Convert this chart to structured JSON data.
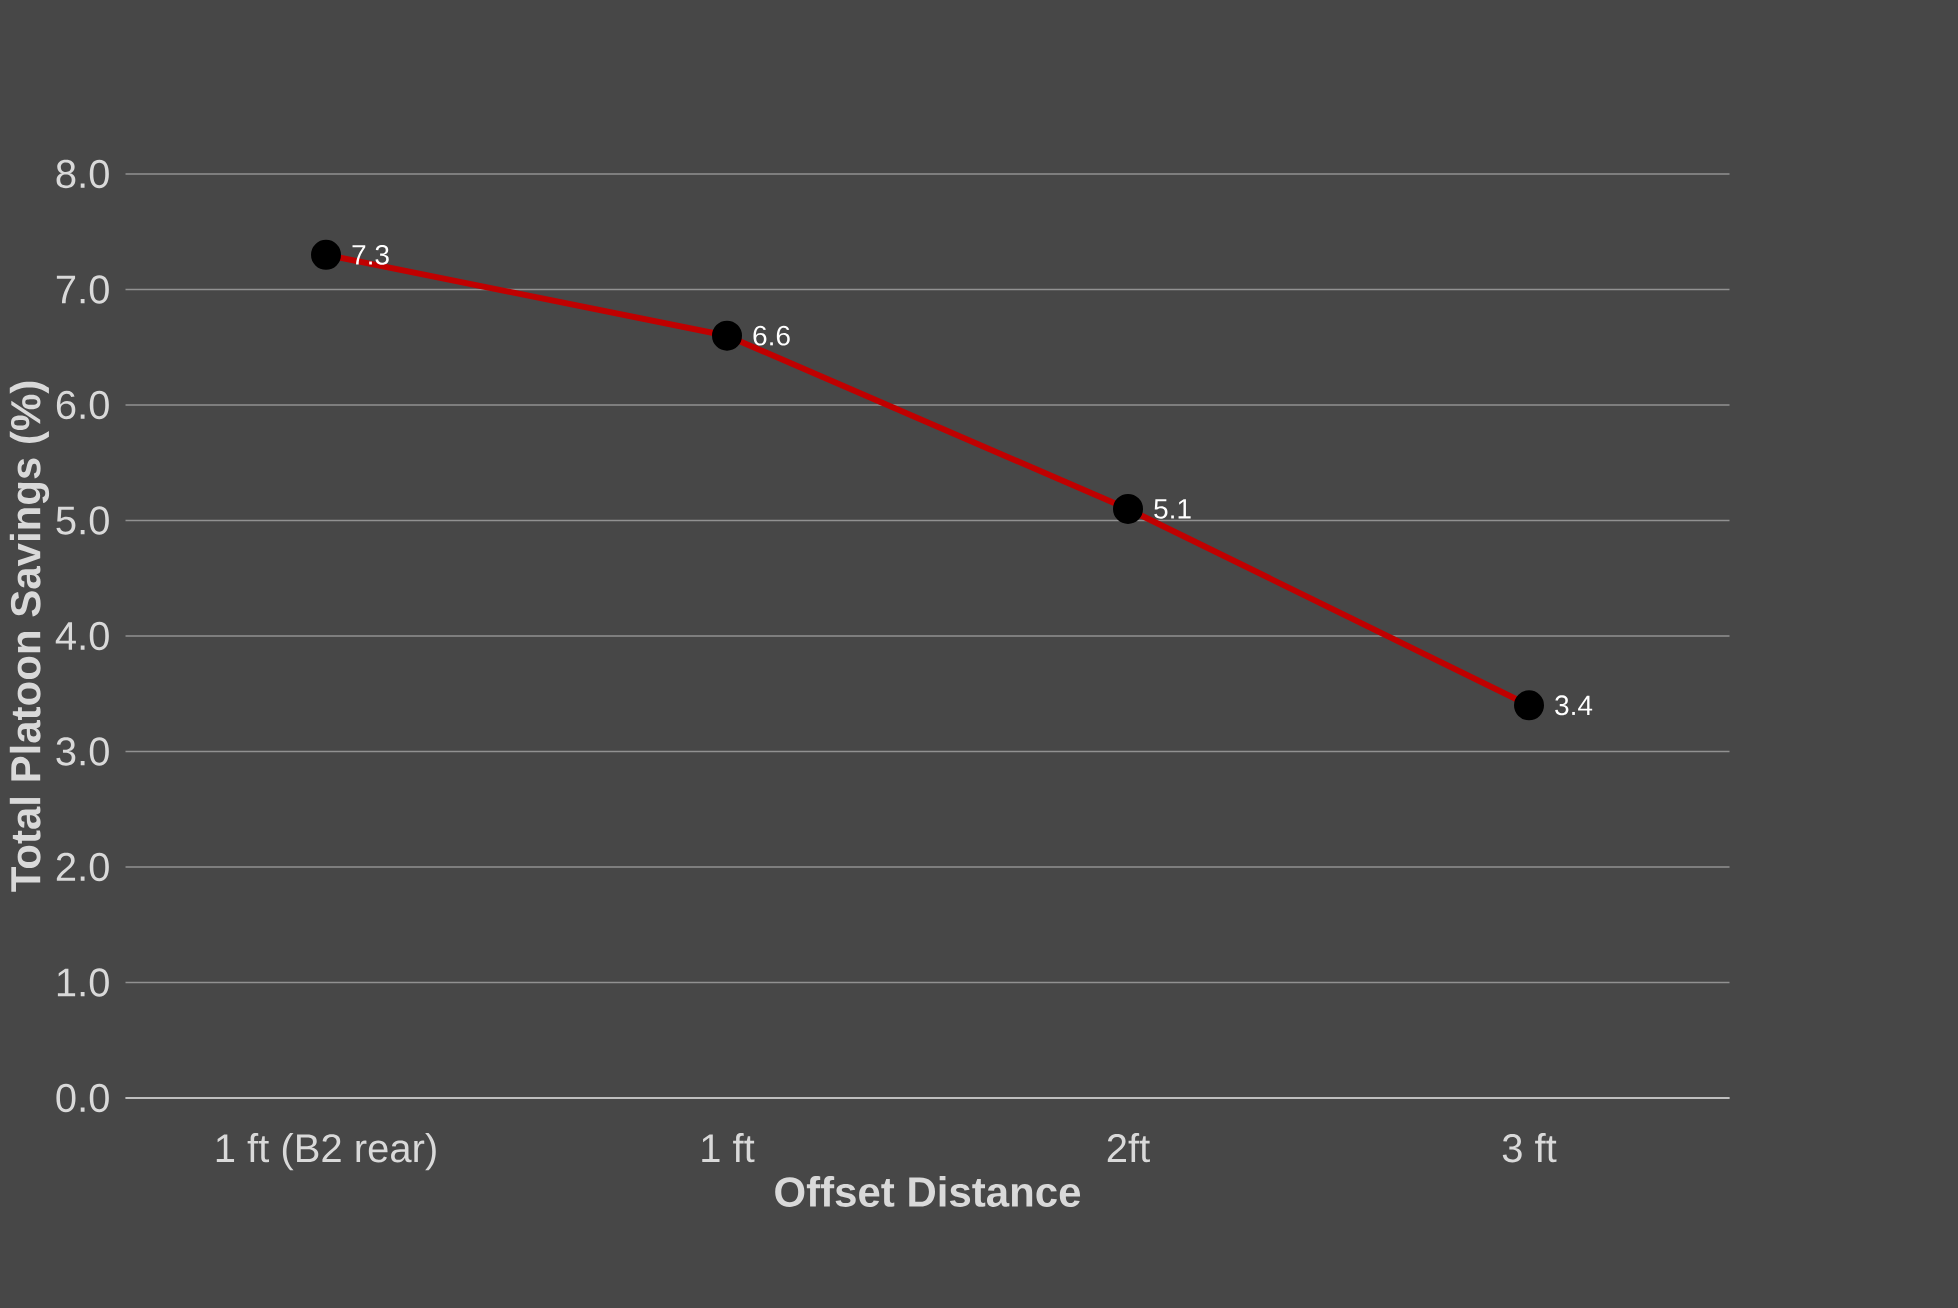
{
  "chart_data": {
    "type": "line",
    "xlabel": "Offset Distance",
    "ylabel": "Total Platoon Savings (%)",
    "categories": [
      "1 ft (B2 rear)",
      "1 ft",
      "2ft",
      "3 ft"
    ],
    "series": [
      {
        "color": "#c00000",
        "values": [
          7.3,
          6.6,
          5.1,
          3.4
        ]
      }
    ],
    "ylim": [
      0,
      8
    ],
    "yticks": [
      {
        "value": 0,
        "label": "0.0"
      },
      {
        "value": 1,
        "label": "1.0"
      },
      {
        "value": 2,
        "label": "2.0"
      },
      {
        "value": 3,
        "label": "3.0"
      },
      {
        "value": 4,
        "label": "4.0"
      },
      {
        "value": 5,
        "label": "5.0"
      },
      {
        "value": 6,
        "label": "6.0"
      },
      {
        "value": 7,
        "label": "7.0"
      },
      {
        "value": 8,
        "label": "8.0"
      }
    ],
    "grid": "y",
    "marker": "circle",
    "line_style": "solid",
    "data_labels": true
  }
}
